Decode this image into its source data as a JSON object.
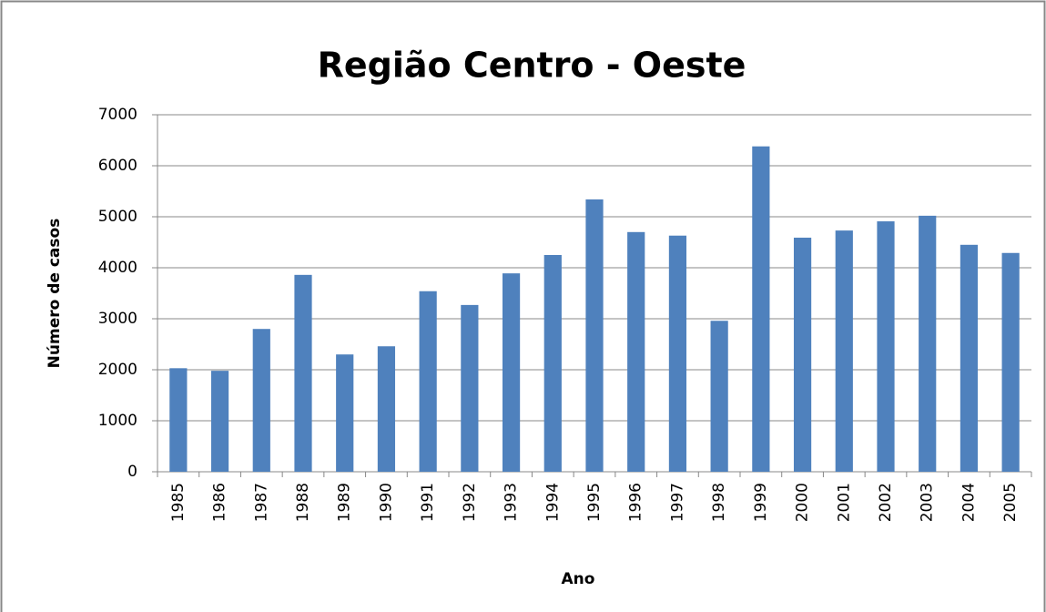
{
  "chart_data": {
    "type": "bar",
    "title": "Região Centro - Oeste",
    "x_label": "Ano",
    "y_label": "Número de casos",
    "categories": [
      "1985",
      "1986",
      "1987",
      "1988",
      "1989",
      "1990",
      "1991",
      "1992",
      "1993",
      "1994",
      "1995",
      "1996",
      "1997",
      "1998",
      "1999",
      "2000",
      "2001",
      "2002",
      "2003",
      "2004",
      "2005"
    ],
    "values": [
      2030,
      1980,
      2800,
      3860,
      2300,
      2460,
      3540,
      3270,
      3890,
      4250,
      5340,
      4700,
      4630,
      2960,
      6380,
      4590,
      4730,
      4910,
      5020,
      4450,
      4290
    ],
    "color": "#4f81bd",
    "ylim": [
      0,
      7000
    ],
    "yticks": [
      0,
      1000,
      2000,
      3000,
      4000,
      5000,
      6000,
      7000
    ],
    "grid": true
  }
}
